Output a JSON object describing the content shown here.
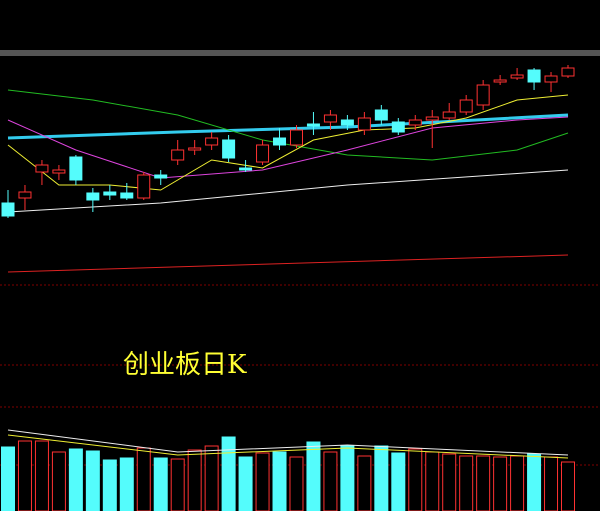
{
  "chart_data": {
    "type": "candlestick",
    "title": "创业板日K",
    "xlim": [
      -0.5,
      33.5
    ],
    "ylim": [
      0,
      245
    ],
    "up_color": "#ff3232",
    "down_color": "#54fcfc",
    "open": [
      97,
      102,
      128,
      127,
      143,
      107,
      108,
      107,
      102,
      125,
      140,
      150,
      155,
      160,
      132,
      138,
      162,
      155,
      176,
      178,
      180,
      170,
      190,
      178,
      175,
      180,
      182,
      188,
      195,
      218,
      222,
      230,
      218,
      224
    ],
    "close": [
      84,
      108,
      135,
      130,
      120,
      100,
      105,
      102,
      125,
      122,
      150,
      152,
      162,
      142,
      130,
      155,
      155,
      170,
      174,
      185,
      175,
      182,
      180,
      168,
      180,
      183,
      188,
      200,
      215,
      220,
      225,
      218,
      224,
      232
    ],
    "high": [
      110,
      115,
      140,
      135,
      145,
      112,
      115,
      117,
      128,
      130,
      160,
      160,
      168,
      165,
      140,
      160,
      172,
      175,
      188,
      190,
      185,
      188,
      195,
      182,
      185,
      190,
      197,
      205,
      220,
      225,
      232,
      232,
      228,
      235
    ],
    "low": [
      82,
      90,
      115,
      120,
      115,
      88,
      100,
      100,
      100,
      115,
      135,
      145,
      150,
      138,
      128,
      135,
      150,
      152,
      165,
      170,
      170,
      165,
      175,
      165,
      170,
      152,
      180,
      185,
      190,
      215,
      220,
      210,
      208,
      222
    ],
    "overlays": [
      {
        "color": "#33ccee",
        "width": 3,
        "x": [
          0,
          10,
          20,
          33
        ],
        "values": [
          162,
          168,
          173,
          185
        ]
      },
      {
        "color": "#eeeeee",
        "width": 1,
        "x": [
          0,
          9,
          20,
          33
        ],
        "values": [
          88,
          97,
          115,
          130
        ]
      },
      {
        "color": "#dd2222",
        "width": 1,
        "x": [
          0,
          33
        ],
        "values": [
          28,
          45
        ]
      },
      {
        "color": "#22bb22",
        "width": 1,
        "x": [
          0,
          5,
          10,
          15,
          20,
          25,
          30,
          33
        ],
        "values": [
          210,
          200,
          185,
          160,
          145,
          140,
          150,
          167
        ]
      },
      {
        "color": "#dd44dd",
        "width": 1,
        "x": [
          0,
          4,
          9,
          15,
          20,
          25,
          30,
          33
        ],
        "values": [
          180,
          150,
          122,
          130,
          150,
          172,
          180,
          183
        ]
      },
      {
        "color": "#eeee33",
        "width": 1,
        "x": [
          0,
          3,
          6,
          9,
          12,
          15,
          18,
          21,
          24,
          27,
          30,
          33
        ],
        "values": [
          155,
          115,
          115,
          110,
          140,
          132,
          160,
          170,
          172,
          182,
          200,
          205
        ]
      }
    ],
    "volume": {
      "ylim": [
        0,
        80
      ],
      "values": [
        64,
        70,
        70,
        59,
        62,
        60,
        51,
        53,
        63,
        53,
        52,
        61,
        65,
        74,
        54,
        58,
        59,
        54,
        69,
        59,
        65,
        55,
        65,
        58,
        62,
        59,
        57,
        55,
        55,
        54,
        55,
        57,
        54,
        49
      ],
      "overlays": [
        {
          "color": "#eeeeee",
          "x": [
            0,
            10,
            20,
            33
          ],
          "values": [
            81,
            59,
            66,
            56
          ]
        },
        {
          "color": "#eeee33",
          "x": [
            0,
            10,
            20,
            33
          ],
          "values": [
            76,
            56,
            63,
            53
          ]
        }
      ]
    }
  }
}
